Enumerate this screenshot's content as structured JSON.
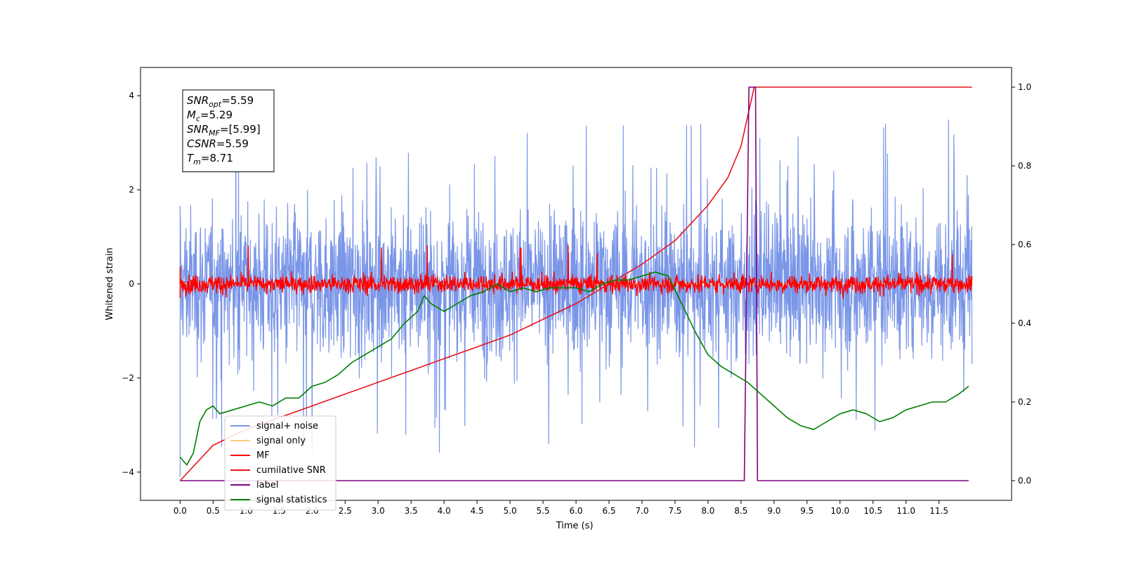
{
  "chart_data": {
    "type": "line",
    "xlabel": "Time (s)",
    "ylabel": "Whitened strain",
    "xlim": [
      -0.6,
      12.6
    ],
    "ylim_left": [
      -4.6,
      4.6
    ],
    "ylim_right": [
      -0.05,
      1.05
    ],
    "x_ticks": [
      "0.0",
      "0.5",
      "1.0",
      "1.5",
      "2.0",
      "2.5",
      "3.0",
      "3.5",
      "4.0",
      "4.5",
      "5.0",
      "5.5",
      "6.0",
      "6.5",
      "7.0",
      "7.5",
      "8.0",
      "8.5",
      "9.0",
      "9.5",
      "10.0",
      "10.5",
      "11.0",
      "11.5"
    ],
    "y_ticks_left": [
      "4",
      "2",
      "0",
      "−2",
      "−4"
    ],
    "y_ticks_right": [
      "1.0",
      "0.8",
      "0.6",
      "0.4",
      "0.2",
      "0.0"
    ],
    "grid": false,
    "legend_position": "lower-left",
    "legend": [
      "signal+ noise",
      "signal only",
      "MF",
      "cumilative SNR",
      "label",
      "signal statistics"
    ],
    "colors": {
      "signal_noise": "#7a96e8",
      "signal_only": "#ffcc80",
      "mf": "#ff0000",
      "cumulative_snr": "#e8141a",
      "label": "#800080",
      "signal_statistics": "#008000"
    },
    "series": [
      {
        "name": "signal+ noise",
        "axis": "left",
        "style": "noise",
        "x_range": [
          0,
          12.0
        ],
        "amplitude_band": [
          -2.0,
          2.0
        ],
        "extremes": [
          -4.1,
          4.15
        ]
      },
      {
        "name": "signal only",
        "axis": "left",
        "style": "flat",
        "x_range": [
          0,
          12.0
        ],
        "level": 0
      },
      {
        "name": "MF",
        "axis": "left",
        "style": "noise",
        "x_range": [
          0,
          12.0
        ],
        "amplitude_band": [
          -0.25,
          0.25
        ],
        "extremes": [
          -0.3,
          0.9
        ]
      },
      {
        "name": "cumilative SNR",
        "axis": "right",
        "x": [
          0.0,
          0.5,
          1.0,
          1.5,
          2.0,
          2.5,
          3.0,
          3.5,
          4.0,
          4.5,
          5.0,
          5.5,
          6.0,
          6.5,
          7.0,
          7.5,
          8.0,
          8.3,
          8.5,
          8.7,
          12.0
        ],
        "y": [
          0.0,
          0.09,
          0.13,
          0.16,
          0.19,
          0.22,
          0.25,
          0.28,
          0.31,
          0.34,
          0.37,
          0.41,
          0.45,
          0.5,
          0.55,
          0.61,
          0.7,
          0.77,
          0.85,
          1.0,
          1.0
        ]
      },
      {
        "name": "label",
        "axis": "right",
        "x": [
          0.0,
          8.55,
          8.62,
          8.72,
          8.75,
          11.95
        ],
        "y": [
          0.0,
          0.0,
          1.0,
          1.0,
          0.0,
          0.0
        ]
      },
      {
        "name": "signal statistics",
        "axis": "right",
        "x": [
          0.0,
          0.1,
          0.2,
          0.3,
          0.4,
          0.5,
          0.6,
          0.8,
          1.0,
          1.2,
          1.4,
          1.6,
          1.8,
          2.0,
          2.2,
          2.4,
          2.6,
          2.8,
          3.0,
          3.2,
          3.4,
          3.6,
          3.7,
          3.8,
          4.0,
          4.2,
          4.4,
          4.6,
          4.8,
          5.0,
          5.2,
          5.4,
          5.6,
          5.8,
          6.0,
          6.2,
          6.4,
          6.6,
          6.8,
          7.0,
          7.2,
          7.4,
          7.6,
          7.8,
          8.0,
          8.2,
          8.4,
          8.6,
          8.8,
          9.0,
          9.2,
          9.4,
          9.6,
          9.8,
          10.0,
          10.2,
          10.4,
          10.6,
          10.8,
          11.0,
          11.2,
          11.4,
          11.6,
          11.8,
          11.95
        ],
        "y": [
          0.06,
          0.04,
          0.07,
          0.15,
          0.18,
          0.19,
          0.17,
          0.18,
          0.19,
          0.2,
          0.19,
          0.21,
          0.21,
          0.24,
          0.25,
          0.27,
          0.3,
          0.32,
          0.34,
          0.36,
          0.4,
          0.43,
          0.47,
          0.45,
          0.43,
          0.45,
          0.47,
          0.48,
          0.5,
          0.48,
          0.49,
          0.48,
          0.49,
          0.49,
          0.49,
          0.48,
          0.5,
          0.51,
          0.51,
          0.52,
          0.53,
          0.52,
          0.45,
          0.38,
          0.32,
          0.29,
          0.27,
          0.25,
          0.22,
          0.19,
          0.16,
          0.14,
          0.13,
          0.15,
          0.17,
          0.18,
          0.17,
          0.15,
          0.16,
          0.18,
          0.19,
          0.2,
          0.2,
          0.22,
          0.24
        ]
      }
    ],
    "annotation_box": {
      "lines": [
        {
          "main": "SNR",
          "sub": "opt",
          "rest": "=5.59"
        },
        {
          "main": "M",
          "sub": "c",
          "rest": "=5.29"
        },
        {
          "main": "SNR",
          "sub": "MF",
          "rest": "=[5.99]"
        },
        {
          "main": "CSNR",
          "sub": "",
          "rest": "=5.59"
        },
        {
          "main": "T",
          "sub": "m",
          "rest": "=8.71"
        }
      ]
    }
  }
}
